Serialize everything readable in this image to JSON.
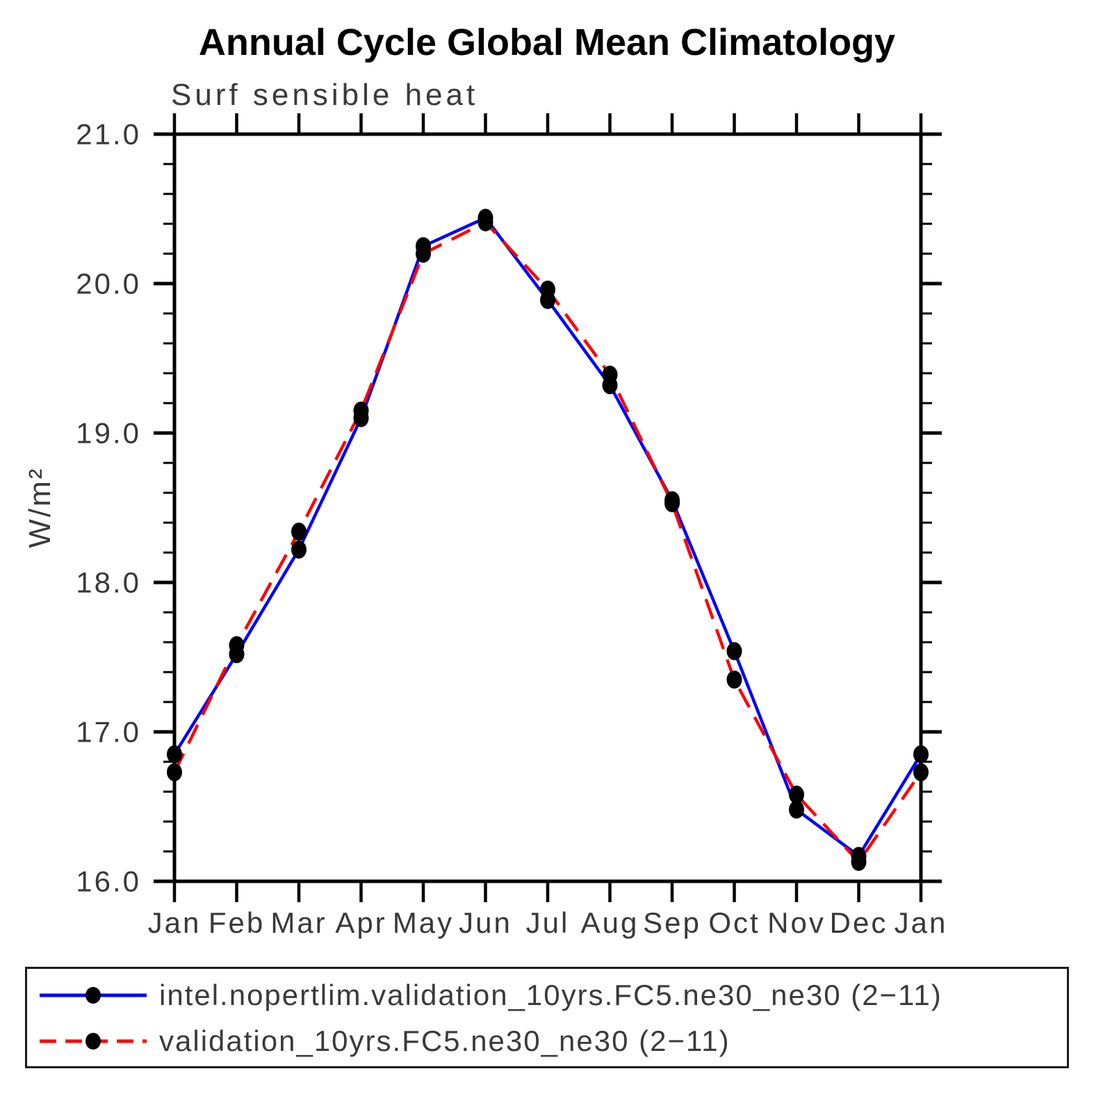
{
  "chart_data": {
    "type": "line",
    "title": "Annual Cycle Global Mean Climatology",
    "subtitle": "Surf sensible heat",
    "ylabel": "W/m²",
    "xlabel": "",
    "categories": [
      "Jan",
      "Feb",
      "Mar",
      "Apr",
      "May",
      "Jun",
      "Jul",
      "Aug",
      "Sep",
      "Oct",
      "Nov",
      "Dec",
      "Jan"
    ],
    "ylim": [
      16.0,
      21.0
    ],
    "yticks": [
      16.0,
      17.0,
      18.0,
      19.0,
      20.0,
      21.0
    ],
    "ytick_labels": [
      "16.0",
      "17.0",
      "18.0",
      "19.0",
      "20.0",
      "21.0"
    ],
    "y_minor_step": 0.2,
    "grid": false,
    "legend_position": "bottom",
    "marker": {
      "shape": "filled-circle",
      "color": "#000000"
    },
    "axis_color": "#000000",
    "series": [
      {
        "name": "intel.nopertlim.validation_10yrs.FC5.ne30_ne30 (2−11)",
        "color": "#0000ff",
        "line_style": "solid",
        "values": [
          16.85,
          17.52,
          18.22,
          19.1,
          20.25,
          20.44,
          19.89,
          19.32,
          18.55,
          17.54,
          16.48,
          16.17,
          16.85
        ]
      },
      {
        "name": "validation_10yrs.FC5.ne30_ne30 (2−11)",
        "color": "#ff0000",
        "line_style": "dashed",
        "values": [
          16.73,
          17.58,
          18.34,
          19.15,
          20.2,
          20.41,
          19.96,
          19.39,
          18.53,
          17.35,
          16.58,
          16.13,
          16.73
        ]
      }
    ]
  }
}
